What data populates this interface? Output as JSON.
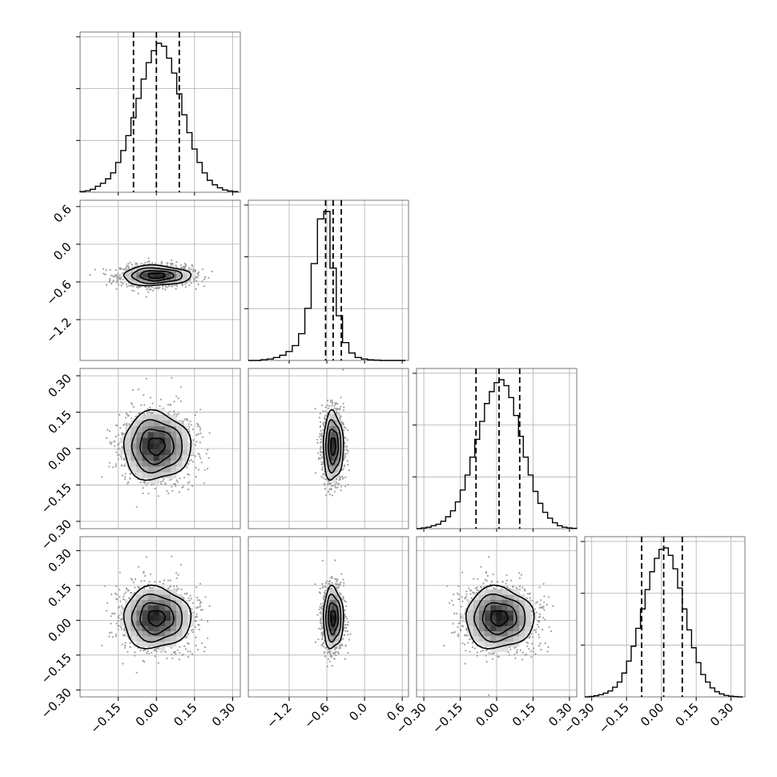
{
  "chart_data": {
    "type": "corner",
    "grid": true,
    "colors": {
      "line": "#000000",
      "scatter": "#a0a0a0",
      "background": "#ffffff",
      "grid": "#b0b0b0"
    },
    "params": [
      {
        "range": [
          -0.3,
          0.33
        ],
        "ticks": [
          -0.15,
          0.0,
          0.15,
          0.3
        ],
        "tick_labels": [
          "−0.15",
          "0.00",
          "0.15",
          "0.30"
        ],
        "mean": 0.0,
        "sd": 0.066,
        "quantiles": [
          -0.09,
          0.0,
          0.09
        ]
      },
      {
        "range": [
          -1.85,
          0.7
        ],
        "ticks": [
          -1.2,
          -0.6,
          0.0,
          0.6
        ],
        "tick_labels": [
          "−1.2",
          "−0.6",
          "0.0",
          "0.6"
        ],
        "mean": -0.5,
        "sd": 0.08,
        "quantiles": [
          -0.62,
          -0.5,
          -0.37
        ]
      },
      {
        "range": [
          -0.33,
          0.33
        ],
        "ticks": [
          -0.3,
          -0.15,
          0.0,
          0.15,
          0.3
        ],
        "tick_labels": [
          "−0.30",
          "−0.15",
          "0.00",
          "0.15",
          "0.30"
        ],
        "mean": 0.01,
        "sd": 0.07,
        "quantiles": [
          -0.085,
          0.01,
          0.095
        ]
      },
      {
        "range": [
          -0.33,
          0.36
        ],
        "ticks": [
          -0.3,
          -0.15,
          0.0,
          0.15,
          0.3
        ],
        "tick_labels": [
          "−0.30",
          "−0.15",
          "0.00",
          "0.15",
          "0.30"
        ],
        "mean": 0.01,
        "sd": 0.066,
        "quantiles": [
          -0.085,
          0.01,
          0.09
        ]
      }
    ],
    "histograms": [
      {
        "param": 0,
        "bin_edges": [
          -0.3,
          -0.28,
          -0.26,
          -0.24,
          -0.22,
          -0.2,
          -0.18,
          -0.16,
          -0.14,
          -0.12,
          -0.1,
          -0.08,
          -0.06,
          -0.04,
          -0.02,
          0.0,
          0.02,
          0.04,
          0.06,
          0.08,
          0.1,
          0.12,
          0.14,
          0.16,
          0.18,
          0.2,
          0.22,
          0.24,
          0.26,
          0.28,
          0.3,
          0.32
        ],
        "counts": [
          0.005,
          0.01,
          0.02,
          0.04,
          0.06,
          0.09,
          0.13,
          0.2,
          0.28,
          0.38,
          0.5,
          0.63,
          0.76,
          0.87,
          0.95,
          1.0,
          0.98,
          0.9,
          0.8,
          0.66,
          0.52,
          0.4,
          0.29,
          0.2,
          0.13,
          0.08,
          0.05,
          0.03,
          0.015,
          0.008,
          0.004
        ]
      },
      {
        "param": 1,
        "bin_edges": [
          -1.85,
          -1.75,
          -1.65,
          -1.55,
          -1.45,
          -1.35,
          -1.25,
          -1.15,
          -1.05,
          -0.95,
          -0.85,
          -0.75,
          -0.65,
          -0.55,
          -0.45,
          -0.35,
          -0.25,
          -0.15,
          -0.05,
          0.05,
          0.15,
          0.25,
          0.35,
          0.45,
          0.55,
          0.65
        ],
        "counts": [
          0,
          0,
          0.005,
          0.01,
          0.02,
          0.035,
          0.06,
          0.1,
          0.18,
          0.35,
          0.65,
          0.95,
          1.0,
          0.62,
          0.3,
          0.12,
          0.05,
          0.02,
          0.01,
          0.004,
          0.002,
          0,
          0,
          0,
          0
        ]
      },
      {
        "param": 2,
        "bin_edges": [
          -0.33,
          -0.31,
          -0.29,
          -0.27,
          -0.25,
          -0.23,
          -0.21,
          -0.19,
          -0.17,
          -0.15,
          -0.13,
          -0.11,
          -0.09,
          -0.07,
          -0.05,
          -0.03,
          -0.01,
          0.01,
          0.03,
          0.05,
          0.07,
          0.09,
          0.11,
          0.13,
          0.15,
          0.17,
          0.19,
          0.21,
          0.23,
          0.25,
          0.27,
          0.29,
          0.31,
          0.33
        ],
        "counts": [
          0,
          0.005,
          0.01,
          0.02,
          0.03,
          0.05,
          0.08,
          0.12,
          0.18,
          0.26,
          0.36,
          0.48,
          0.6,
          0.72,
          0.84,
          0.92,
          0.98,
          1.0,
          0.96,
          0.88,
          0.76,
          0.62,
          0.48,
          0.36,
          0.25,
          0.17,
          0.11,
          0.07,
          0.04,
          0.02,
          0.01,
          0.005,
          0.002
        ]
      },
      {
        "param": 3,
        "bin_edges": [
          -0.33,
          -0.31,
          -0.29,
          -0.27,
          -0.25,
          -0.23,
          -0.21,
          -0.19,
          -0.17,
          -0.15,
          -0.13,
          -0.11,
          -0.09,
          -0.07,
          -0.05,
          -0.03,
          -0.01,
          0.01,
          0.03,
          0.05,
          0.07,
          0.09,
          0.11,
          0.13,
          0.15,
          0.17,
          0.19,
          0.21,
          0.23,
          0.25,
          0.27,
          0.29,
          0.31,
          0.33,
          0.35
        ],
        "counts": [
          0,
          0.003,
          0.008,
          0.015,
          0.025,
          0.04,
          0.065,
          0.1,
          0.16,
          0.24,
          0.34,
          0.46,
          0.59,
          0.72,
          0.84,
          0.93,
          0.99,
          1.0,
          0.95,
          0.86,
          0.73,
          0.59,
          0.45,
          0.33,
          0.23,
          0.15,
          0.1,
          0.06,
          0.035,
          0.02,
          0.01,
          0.005,
          0.002,
          0
        ]
      }
    ],
    "pairs": [
      {
        "x": 0,
        "y": 1,
        "corr": 0.0
      },
      {
        "x": 0,
        "y": 2,
        "corr": 0.0
      },
      {
        "x": 1,
        "y": 2,
        "corr": 0.0
      },
      {
        "x": 0,
        "y": 3,
        "corr": 0.0
      },
      {
        "x": 1,
        "y": 3,
        "corr": 0.0
      },
      {
        "x": 2,
        "y": 3,
        "corr": 0.0
      }
    ],
    "contour_levels_sigma": [
      0.5,
      1.0,
      1.5,
      2.0
    ],
    "samples_per_panel": 1500
  }
}
